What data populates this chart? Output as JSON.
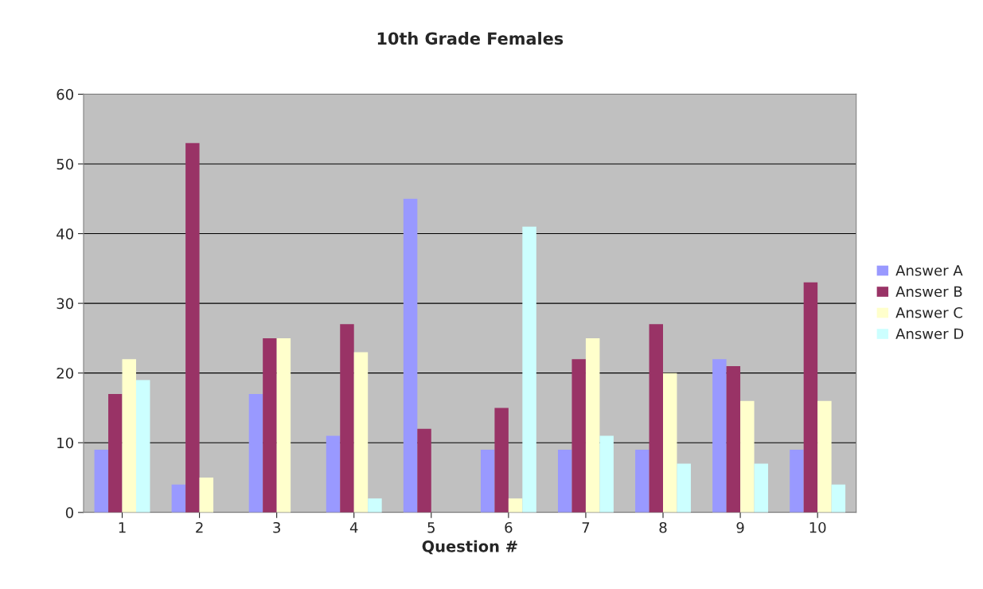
{
  "chart_data": {
    "type": "bar",
    "title": "10th Grade Females",
    "xlabel": "Question #",
    "categories": [
      "1",
      "2",
      "3",
      "4",
      "5",
      "6",
      "7",
      "8",
      "9",
      "10"
    ],
    "series": [
      {
        "name": "Answer A",
        "color": "#9999ff",
        "values": [
          9,
          4,
          17,
          11,
          45,
          9,
          9,
          9,
          22,
          9
        ]
      },
      {
        "name": "Answer B",
        "color": "#993366",
        "values": [
          17,
          53,
          25,
          27,
          12,
          15,
          22,
          27,
          21,
          33
        ]
      },
      {
        "name": "Answer C",
        "color": "#ffffcc",
        "values": [
          22,
          5,
          25,
          23,
          0,
          2,
          25,
          20,
          16,
          16
        ]
      },
      {
        "name": "Answer D",
        "color": "#ccffff",
        "values": [
          19,
          0,
          0,
          2,
          0,
          41,
          11,
          7,
          7,
          4
        ]
      }
    ],
    "ylim": [
      0,
      60
    ],
    "yticks": [
      0,
      10,
      20,
      30,
      40,
      50,
      60
    ],
    "grid": "y",
    "legend": "right"
  }
}
